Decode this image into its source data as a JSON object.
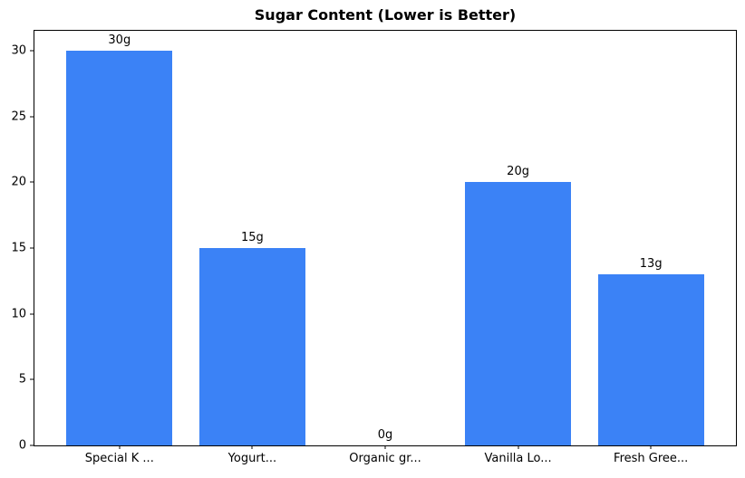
{
  "chart_data": {
    "type": "bar",
    "title": "Sugar Content (Lower is Better)",
    "categories": [
      "Special K ...",
      "Yogurt...",
      "Organic gr...",
      "Vanilla Lo...",
      "Fresh Gree..."
    ],
    "values": [
      30,
      15,
      0,
      20,
      13
    ],
    "bar_labels": [
      "30g",
      "15g",
      "0g",
      "20g",
      "13g"
    ],
    "xlabel": "",
    "ylabel": "",
    "ylim": [
      0,
      31.5
    ],
    "xlim": [
      -0.64,
      4.64
    ],
    "yticks": [
      0,
      5,
      10,
      15,
      20,
      25,
      30
    ],
    "bar_width_fraction": 0.8,
    "bar_color": "#3b82f6",
    "axis_color": "#000000",
    "background_color": "#ffffff",
    "grid": false,
    "legend": null
  }
}
